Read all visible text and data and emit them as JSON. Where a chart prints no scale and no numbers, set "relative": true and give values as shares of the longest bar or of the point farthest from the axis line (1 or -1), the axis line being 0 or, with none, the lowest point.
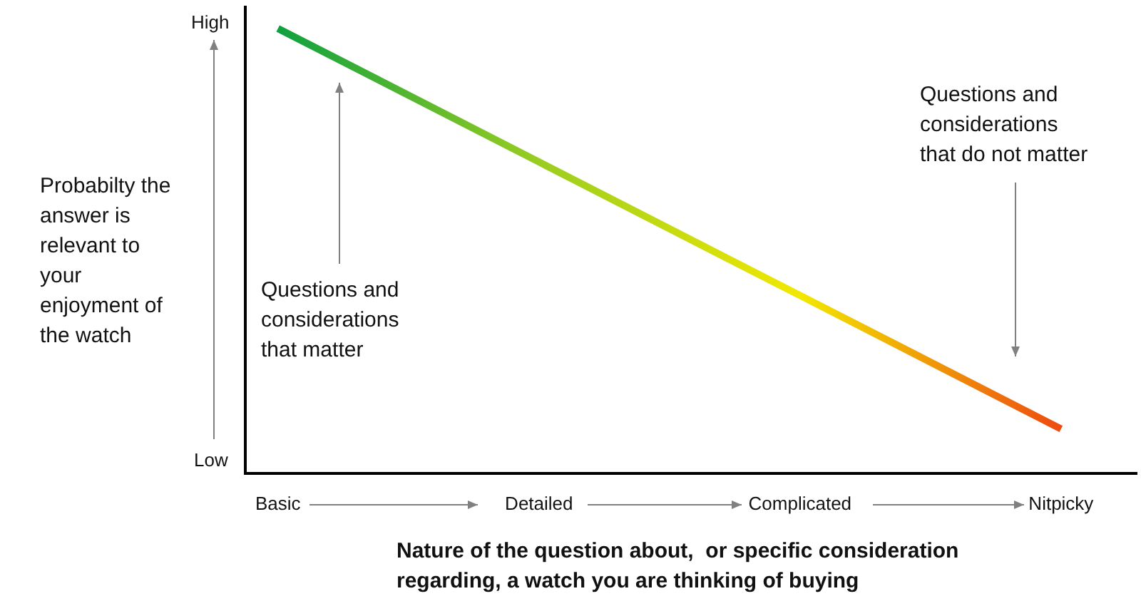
{
  "chart_data": {
    "type": "line",
    "relative": true,
    "xlabel": "Nature of the question about,  or specific consideration regarding, a watch you are thinking of buying",
    "ylabel": "Probabilty the answer is relevant to your enjoyment of the watch",
    "categories": [
      "Basic",
      "Detailed",
      "Complicated",
      "Nitpicky"
    ],
    "series": [
      {
        "colors": [
          "#10a040",
          "#9acd20",
          "#f2e800",
          "#ee4a10"
        ],
        "values": [
          1,
          0.7,
          0.4,
          0.1
        ]
      }
    ],
    "grid": false,
    "legend": false,
    "marker": "none",
    "line_style": "solid",
    "annotations": [
      "Questions and considerations that matter",
      "Questions and considerations that do not matter",
      "High",
      "Low"
    ]
  }
}
